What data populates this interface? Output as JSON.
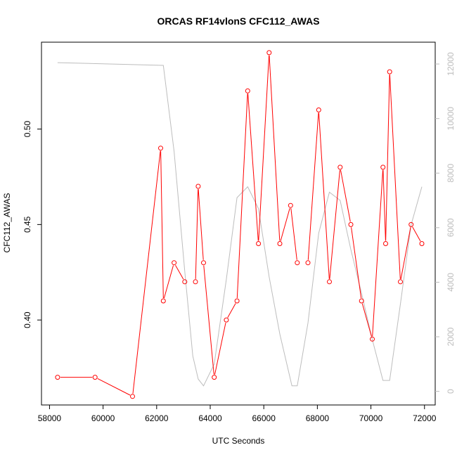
{
  "chart_data": {
    "type": "line",
    "title": "ORCAS RF14vlonS CFC112_AWAS",
    "xlabel": "UTC Seconds",
    "ylabel": "CFC112_AWAS",
    "xlim": [
      57700,
      72400
    ],
    "ylim": [
      0.3555,
      0.5455
    ],
    "y2lim": [
      -500,
      12800
    ],
    "x_ticks": [
      58000,
      60000,
      62000,
      64000,
      66000,
      68000,
      70000,
      72000
    ],
    "y_ticks": [
      0.4,
      0.45,
      0.5
    ],
    "y2_ticks": [
      0,
      2000,
      4000,
      6000,
      8000,
      10000,
      12000
    ],
    "series": [
      {
        "color": "#ff0000",
        "marker": "open-circle",
        "axis": "left",
        "x": [
          58300,
          59700,
          61100,
          62150,
          62250,
          62650,
          63050,
          63450,
          63550,
          63750,
          64150,
          64600,
          65000,
          65400,
          65800,
          66200,
          66600,
          67000,
          67250,
          67650,
          68050,
          68450,
          68850,
          69250,
          69650,
          70050,
          70450,
          70550,
          70700,
          71100,
          71500,
          71900
        ],
        "y": [
          0.37,
          0.37,
          0.36,
          0.49,
          0.41,
          0.43,
          0.42,
          0.42,
          0.47,
          0.43,
          0.37,
          0.4,
          0.41,
          0.52,
          0.44,
          0.54,
          0.44,
          0.46,
          0.43,
          0.43,
          0.51,
          0.42,
          0.48,
          0.45,
          0.41,
          0.39,
          0.48,
          0.44,
          0.53,
          0.42,
          0.45,
          0.44
        ],
        "gaps_after_index": [
          6,
          18
        ]
      },
      {
        "color": "#bdbdbd",
        "marker": "none",
        "axis": "right",
        "x": [
          58300,
          62250,
          62650,
          63050,
          63350,
          63550,
          63750,
          64150,
          64600,
          65000,
          65400,
          65800,
          66200,
          66600,
          67050,
          67250,
          67650,
          68050,
          68450,
          68850,
          69250,
          69650,
          70050,
          70450,
          70700,
          71100,
          71500,
          71900
        ],
        "y": [
          12050,
          11950,
          8800,
          4400,
          1300,
          450,
          200,
          1000,
          4100,
          7100,
          7500,
          6700,
          4200,
          2100,
          200,
          200,
          2500,
          5800,
          7300,
          7000,
          5200,
          3600,
          1900,
          400,
          400,
          3200,
          6100,
          7500
        ]
      }
    ]
  }
}
